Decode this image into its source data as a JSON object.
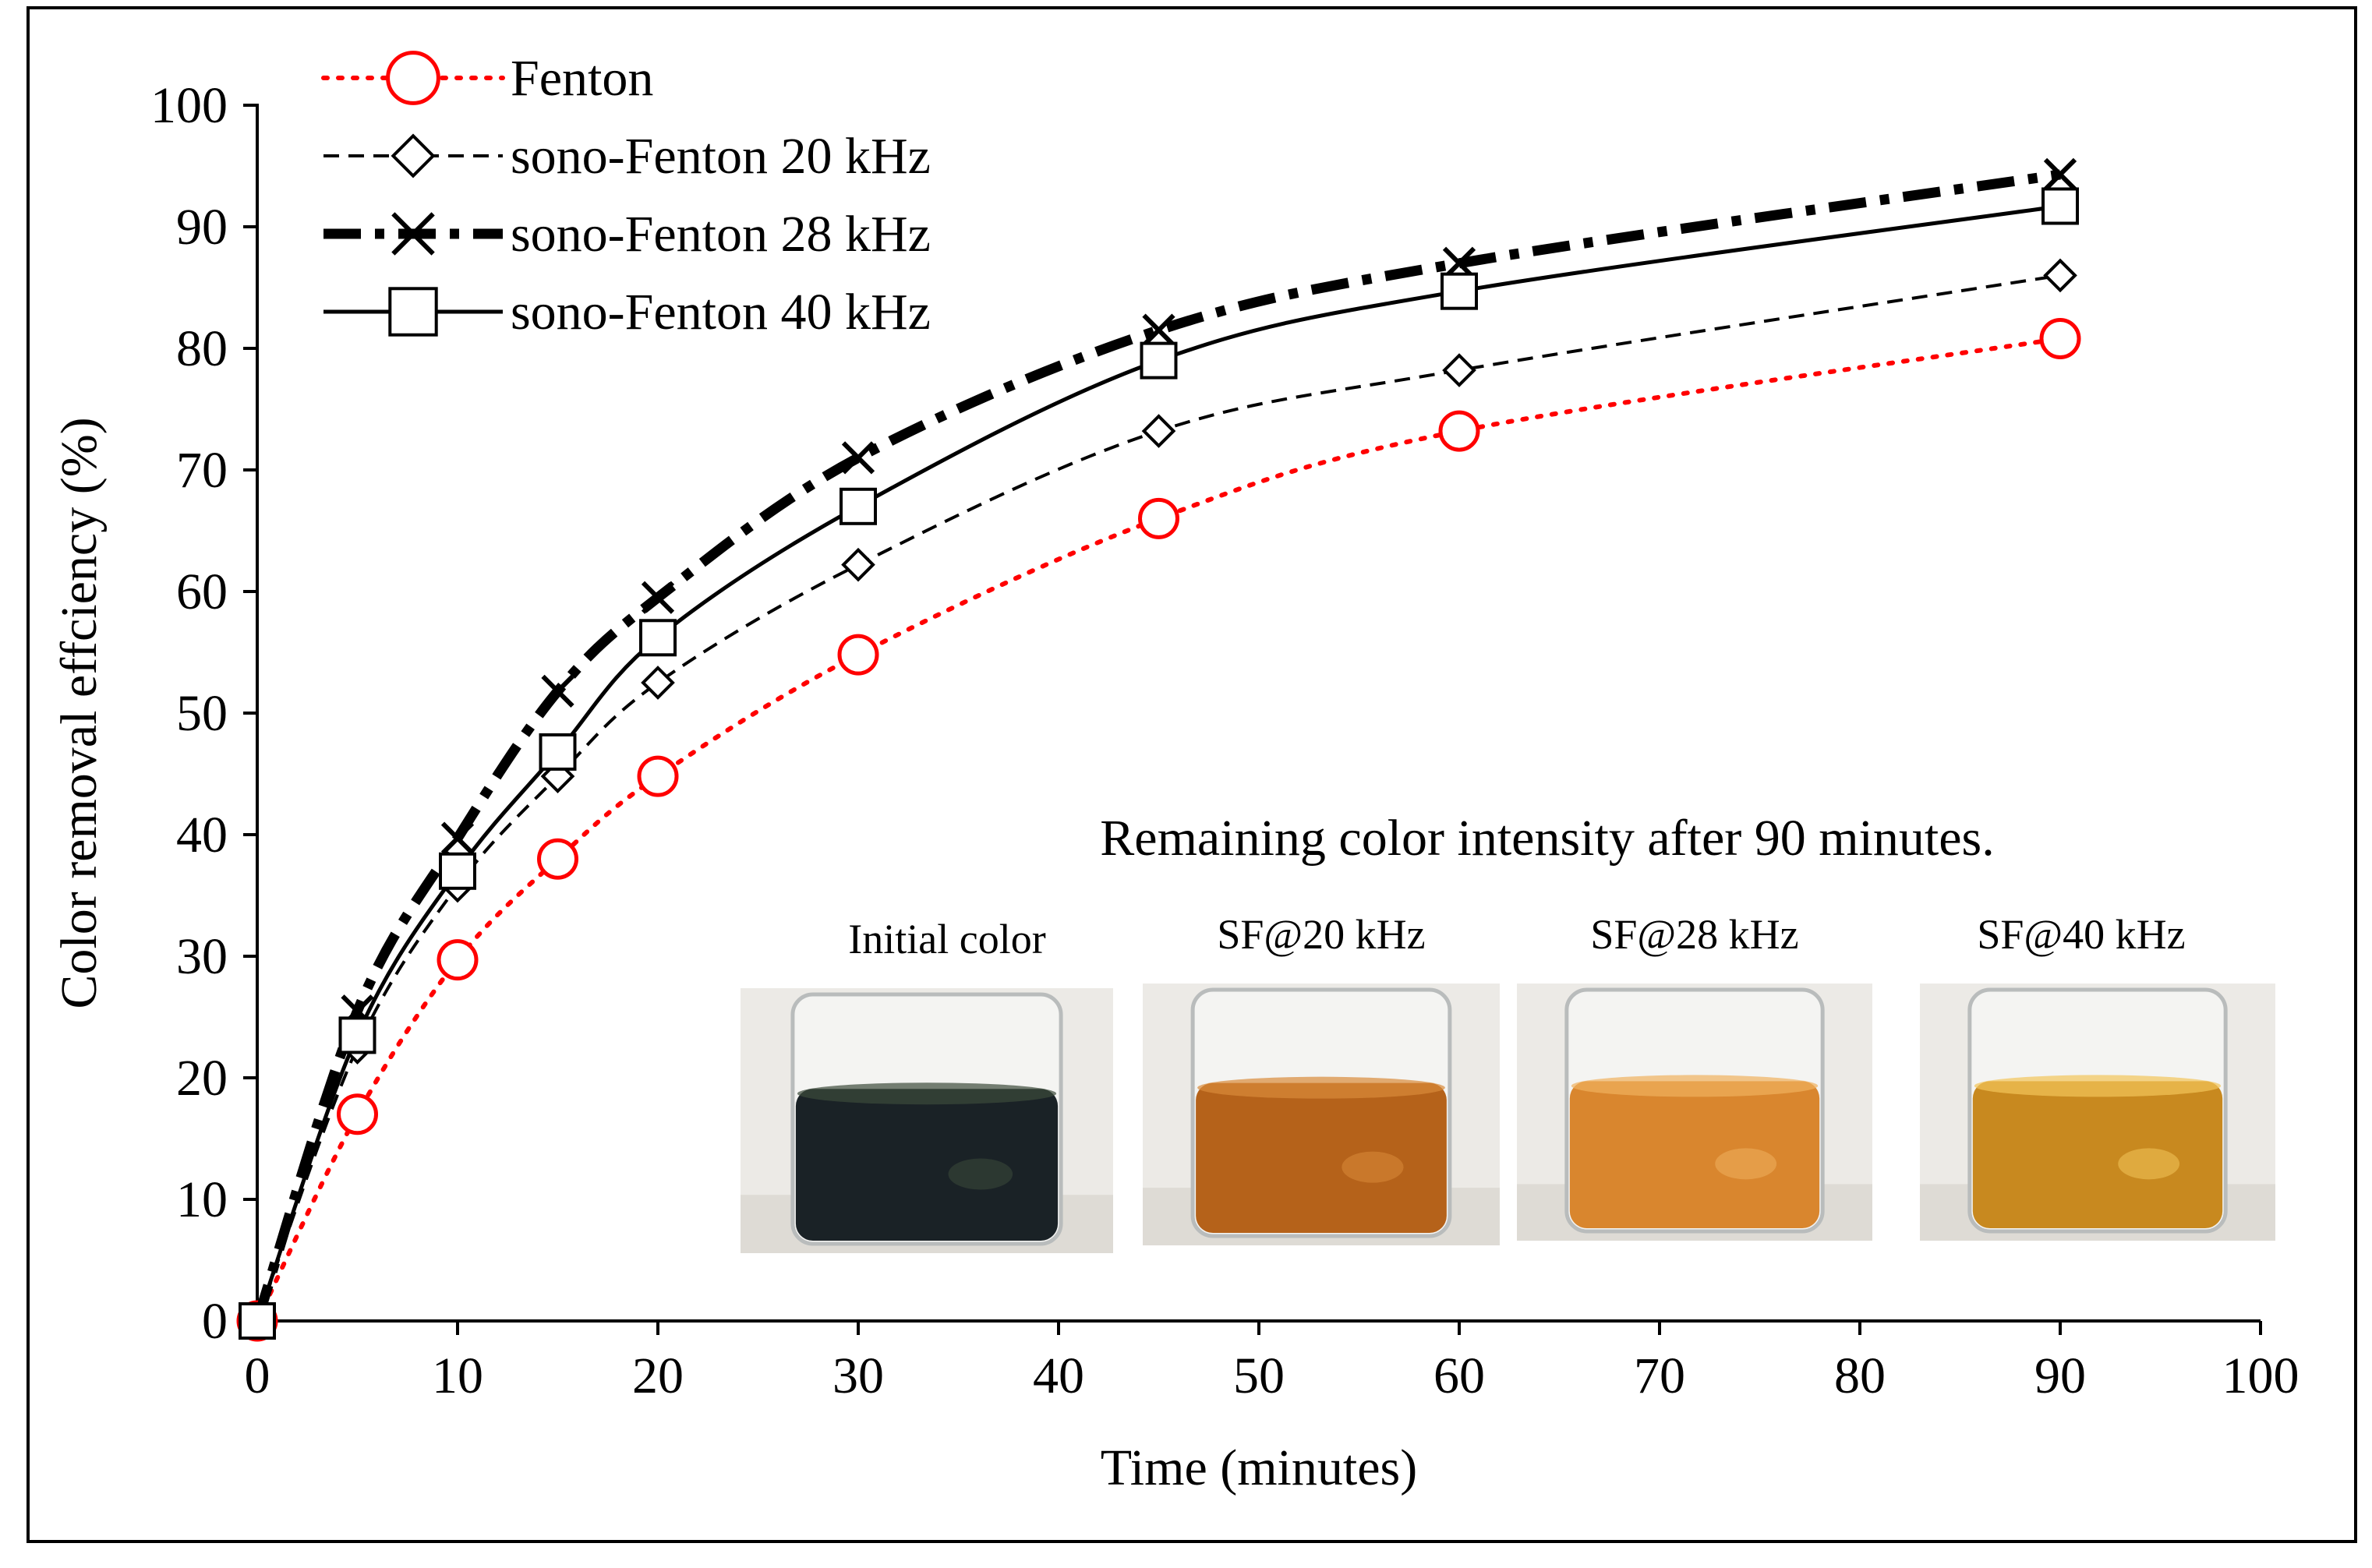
{
  "chart_data": {
    "type": "line",
    "title": "",
    "xlabel": "Time (minutes)",
    "ylabel": "Color removal effciency (%)",
    "xlim": [
      0,
      100
    ],
    "ylim": [
      0,
      100
    ],
    "x_ticks": [
      0,
      10,
      20,
      30,
      40,
      50,
      60,
      70,
      80,
      90,
      100
    ],
    "y_ticks": [
      0,
      10,
      20,
      30,
      40,
      50,
      60,
      70,
      80,
      90,
      100
    ],
    "grid": false,
    "legend_position": "top-left",
    "series": [
      {
        "name": "Fenton",
        "key": "fenton",
        "color": "#ff0000",
        "dash": "dotted",
        "marker": "circle",
        "x": [
          0,
          5,
          10,
          15,
          20,
          30,
          45,
          60,
          90
        ],
        "y": [
          0,
          17,
          29.7,
          38,
          44.8,
          54.8,
          66,
          73.2,
          80.8
        ]
      },
      {
        "name": "sono-Fenton 20 kHz",
        "key": "sf20",
        "color": "#000000",
        "dash": "dashed",
        "marker": "diamond",
        "x": [
          0,
          5,
          10,
          15,
          20,
          30,
          45,
          60,
          90
        ],
        "y": [
          0,
          22.5,
          35.8,
          44.8,
          52.5,
          62.2,
          73.2,
          78.2,
          86
        ]
      },
      {
        "name": "sono-Fenton 28 kHz",
        "key": "sf28",
        "color": "#000000",
        "dash": "dash-dot",
        "marker": "x",
        "x": [
          0,
          5,
          10,
          15,
          20,
          30,
          45,
          60,
          90
        ],
        "y": [
          0,
          25.5,
          39.7,
          51.8,
          59.5,
          71,
          81.5,
          87,
          94.3
        ]
      },
      {
        "name": "sono-Fenton 40 kHz",
        "key": "sf40",
        "color": "#000000",
        "dash": "solid",
        "marker": "square",
        "x": [
          0,
          5,
          10,
          15,
          20,
          30,
          45,
          60,
          90
        ],
        "y": [
          0,
          23.5,
          37,
          46.8,
          56.2,
          67,
          79,
          84.7,
          91.7
        ]
      }
    ]
  },
  "inset": {
    "title": "Remaining color intensity after 90 minutes.",
    "photos": [
      {
        "label": "Initial color",
        "liquid_color": "#1a2226",
        "highlight": "#3c4a3a"
      },
      {
        "label": "SF@20 kHz",
        "liquid_color": "#b5621a",
        "highlight": "#d98a3a"
      },
      {
        "label": "SF@28 kHz",
        "liquid_color": "#d9862e",
        "highlight": "#efb05e"
      },
      {
        "label": "SF@40 kHz",
        "liquid_color": "#c8891f",
        "highlight": "#f2c55a"
      }
    ]
  }
}
